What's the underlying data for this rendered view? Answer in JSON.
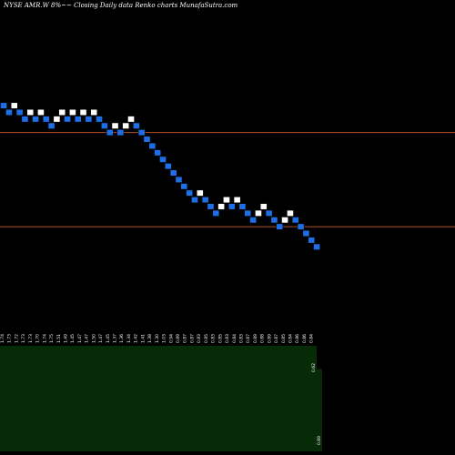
{
  "chart_data": {
    "type": "renko",
    "title": "NYSE AMR.W 8%~~ Closing Daily data Renko charts MunafaSutra.com",
    "colors": {
      "background": "#000000",
      "up_brick": "#ffffff",
      "down_brick": "#1e6fe6",
      "reference_line": "#b0522a",
      "volume_fill": "#062b06"
    },
    "bricks": [
      {
        "level": 1.61,
        "dir": "down"
      },
      {
        "level": 1.6,
        "dir": "down"
      },
      {
        "level": 1.61,
        "dir": "up"
      },
      {
        "level": 1.6,
        "dir": "down"
      },
      {
        "level": 1.59,
        "dir": "down"
      },
      {
        "level": 1.6,
        "dir": "up"
      },
      {
        "level": 1.59,
        "dir": "down"
      },
      {
        "level": 1.6,
        "dir": "up"
      },
      {
        "level": 1.59,
        "dir": "down"
      },
      {
        "level": 1.58,
        "dir": "down"
      },
      {
        "level": 1.59,
        "dir": "up"
      },
      {
        "level": 1.6,
        "dir": "up"
      },
      {
        "level": 1.59,
        "dir": "down"
      },
      {
        "level": 1.6,
        "dir": "up"
      },
      {
        "level": 1.59,
        "dir": "down"
      },
      {
        "level": 1.6,
        "dir": "up"
      },
      {
        "level": 1.59,
        "dir": "down"
      },
      {
        "level": 1.6,
        "dir": "up"
      },
      {
        "level": 1.59,
        "dir": "down"
      },
      {
        "level": 1.58,
        "dir": "down"
      },
      {
        "level": 1.57,
        "dir": "down"
      },
      {
        "level": 1.58,
        "dir": "up"
      },
      {
        "level": 1.57,
        "dir": "down"
      },
      {
        "level": 1.58,
        "dir": "up"
      },
      {
        "level": 1.59,
        "dir": "up"
      },
      {
        "level": 1.58,
        "dir": "down"
      },
      {
        "level": 1.57,
        "dir": "down"
      },
      {
        "level": 1.56,
        "dir": "down"
      },
      {
        "level": 1.55,
        "dir": "down"
      },
      {
        "level": 1.54,
        "dir": "down"
      },
      {
        "level": 1.53,
        "dir": "down"
      },
      {
        "level": 1.52,
        "dir": "down"
      },
      {
        "level": 1.51,
        "dir": "down"
      },
      {
        "level": 1.5,
        "dir": "down"
      },
      {
        "level": 1.49,
        "dir": "down"
      },
      {
        "level": 1.48,
        "dir": "down"
      },
      {
        "level": 1.47,
        "dir": "down"
      },
      {
        "level": 1.48,
        "dir": "up"
      },
      {
        "level": 1.47,
        "dir": "down"
      },
      {
        "level": 1.46,
        "dir": "down"
      },
      {
        "level": 1.45,
        "dir": "down"
      },
      {
        "level": 1.46,
        "dir": "up"
      },
      {
        "level": 1.47,
        "dir": "up"
      },
      {
        "level": 1.46,
        "dir": "down"
      },
      {
        "level": 1.47,
        "dir": "up"
      },
      {
        "level": 1.46,
        "dir": "down"
      },
      {
        "level": 1.45,
        "dir": "down"
      },
      {
        "level": 1.44,
        "dir": "down"
      },
      {
        "level": 1.45,
        "dir": "up"
      },
      {
        "level": 1.46,
        "dir": "up"
      },
      {
        "level": 1.45,
        "dir": "down"
      },
      {
        "level": 1.44,
        "dir": "down"
      },
      {
        "level": 1.43,
        "dir": "down"
      },
      {
        "level": 1.44,
        "dir": "up"
      },
      {
        "level": 1.45,
        "dir": "up"
      },
      {
        "level": 1.44,
        "dir": "down"
      },
      {
        "level": 1.43,
        "dir": "down"
      },
      {
        "level": 1.42,
        "dir": "down"
      },
      {
        "level": 1.41,
        "dir": "down"
      },
      {
        "level": 1.4,
        "dir": "down"
      }
    ],
    "reference_lines": [
      1.57,
      1.43
    ],
    "ylim": [
      1.28,
      1.74
    ],
    "x_tick_labels": [
      "1.74",
      "1.73",
      "1.72",
      "1.73",
      "1.73",
      "1.70",
      "1.74",
      "1.75",
      "1.51",
      "1.49",
      "1.45",
      "1.47",
      "1.47",
      "1.50",
      "1.47",
      "1.45",
      "1.37",
      "1.36",
      "1.34",
      "1.42",
      "1.41",
      "1.38",
      "1.30",
      "1.03",
      "0.94",
      "0.89",
      "0.87",
      "0.87",
      "0.83",
      "0.85",
      "0.83",
      "0.85",
      "0.83",
      "0.84",
      "0.83",
      "0.87",
      "0.89",
      "0.88",
      "0.89",
      "0.87",
      "0.85",
      "0.84",
      "0.86",
      "0.86",
      "0.84"
    ],
    "volume_labels": [
      "0.62",
      "0.69"
    ],
    "volume": [
      {
        "name": "vol-bar-1",
        "value": 1.0
      },
      {
        "name": "vol-bar-2",
        "value": 0.78
      }
    ]
  }
}
